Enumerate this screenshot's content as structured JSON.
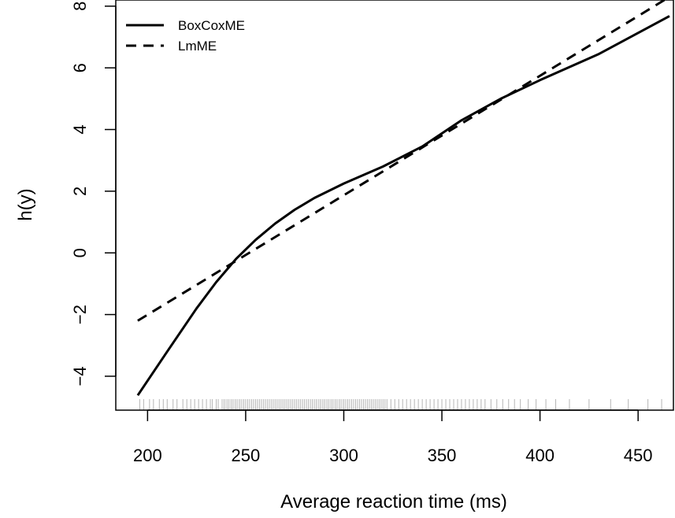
{
  "chart_data": {
    "type": "line",
    "title": "",
    "xlabel": "Average reaction time (ms)",
    "ylabel": "h(y)",
    "xlim": [
      183.8,
      468
    ],
    "ylim": [
      -5.1,
      8.2
    ],
    "xticks": [
      200,
      250,
      300,
      350,
      400,
      450
    ],
    "yticks": [
      -4,
      -2,
      0,
      2,
      4,
      6,
      8
    ],
    "xtick_labels": [
      "200",
      "250",
      "300",
      "350",
      "400",
      "450"
    ],
    "ytick_labels": [
      "−4",
      "−2",
      "0",
      "2",
      "4",
      "6",
      "8"
    ],
    "grid": false,
    "legend_position": "top-left",
    "series": [
      {
        "name": "BoxCoxME",
        "line_style": "solid",
        "color": "#000000",
        "x": [
          195,
          210,
          225,
          235,
          245,
          255,
          265,
          275,
          285,
          300,
          320,
          340,
          360,
          380,
          400,
          430,
          466
        ],
        "y": [
          -4.62,
          -3.2,
          -1.8,
          -0.95,
          -0.2,
          0.42,
          0.95,
          1.4,
          1.78,
          2.25,
          2.8,
          3.45,
          4.3,
          5.0,
          5.6,
          6.45,
          7.68
        ]
      },
      {
        "name": "LmME",
        "line_style": "dashed",
        "color": "#000000",
        "x": [
          195,
          466
        ],
        "y": [
          -2.2,
          8.3
        ]
      }
    ],
    "rug": [
      196,
      198,
      201,
      203,
      206,
      208,
      210,
      213,
      215,
      218,
      220,
      222,
      224,
      226,
      228,
      230,
      232,
      233,
      235,
      236,
      238,
      239,
      240,
      241,
      242,
      243,
      244,
      245,
      246,
      247,
      248,
      249,
      250,
      251,
      252,
      253,
      254,
      255,
      256,
      257,
      258,
      259,
      260,
      261,
      262,
      263,
      264,
      265,
      266,
      267,
      268,
      269,
      270,
      271,
      272,
      273,
      274,
      275,
      276,
      277,
      278,
      279,
      280,
      281,
      282,
      283,
      284,
      285,
      286,
      287,
      288,
      289,
      290,
      291,
      292,
      293,
      294,
      295,
      296,
      297,
      298,
      299,
      300,
      301,
      302,
      303,
      304,
      305,
      306,
      307,
      308,
      309,
      310,
      311,
      312,
      313,
      314,
      315,
      316,
      317,
      318,
      319,
      320,
      321,
      322,
      324,
      326,
      328,
      330,
      332,
      334,
      336,
      338,
      340,
      342,
      344,
      346,
      348,
      350,
      352,
      354,
      356,
      358,
      360,
      362,
      364,
      366,
      368,
      370,
      372,
      375,
      378,
      381,
      384,
      387,
      390,
      394,
      398,
      403,
      408,
      415,
      425,
      436,
      445,
      455,
      462
    ]
  }
}
